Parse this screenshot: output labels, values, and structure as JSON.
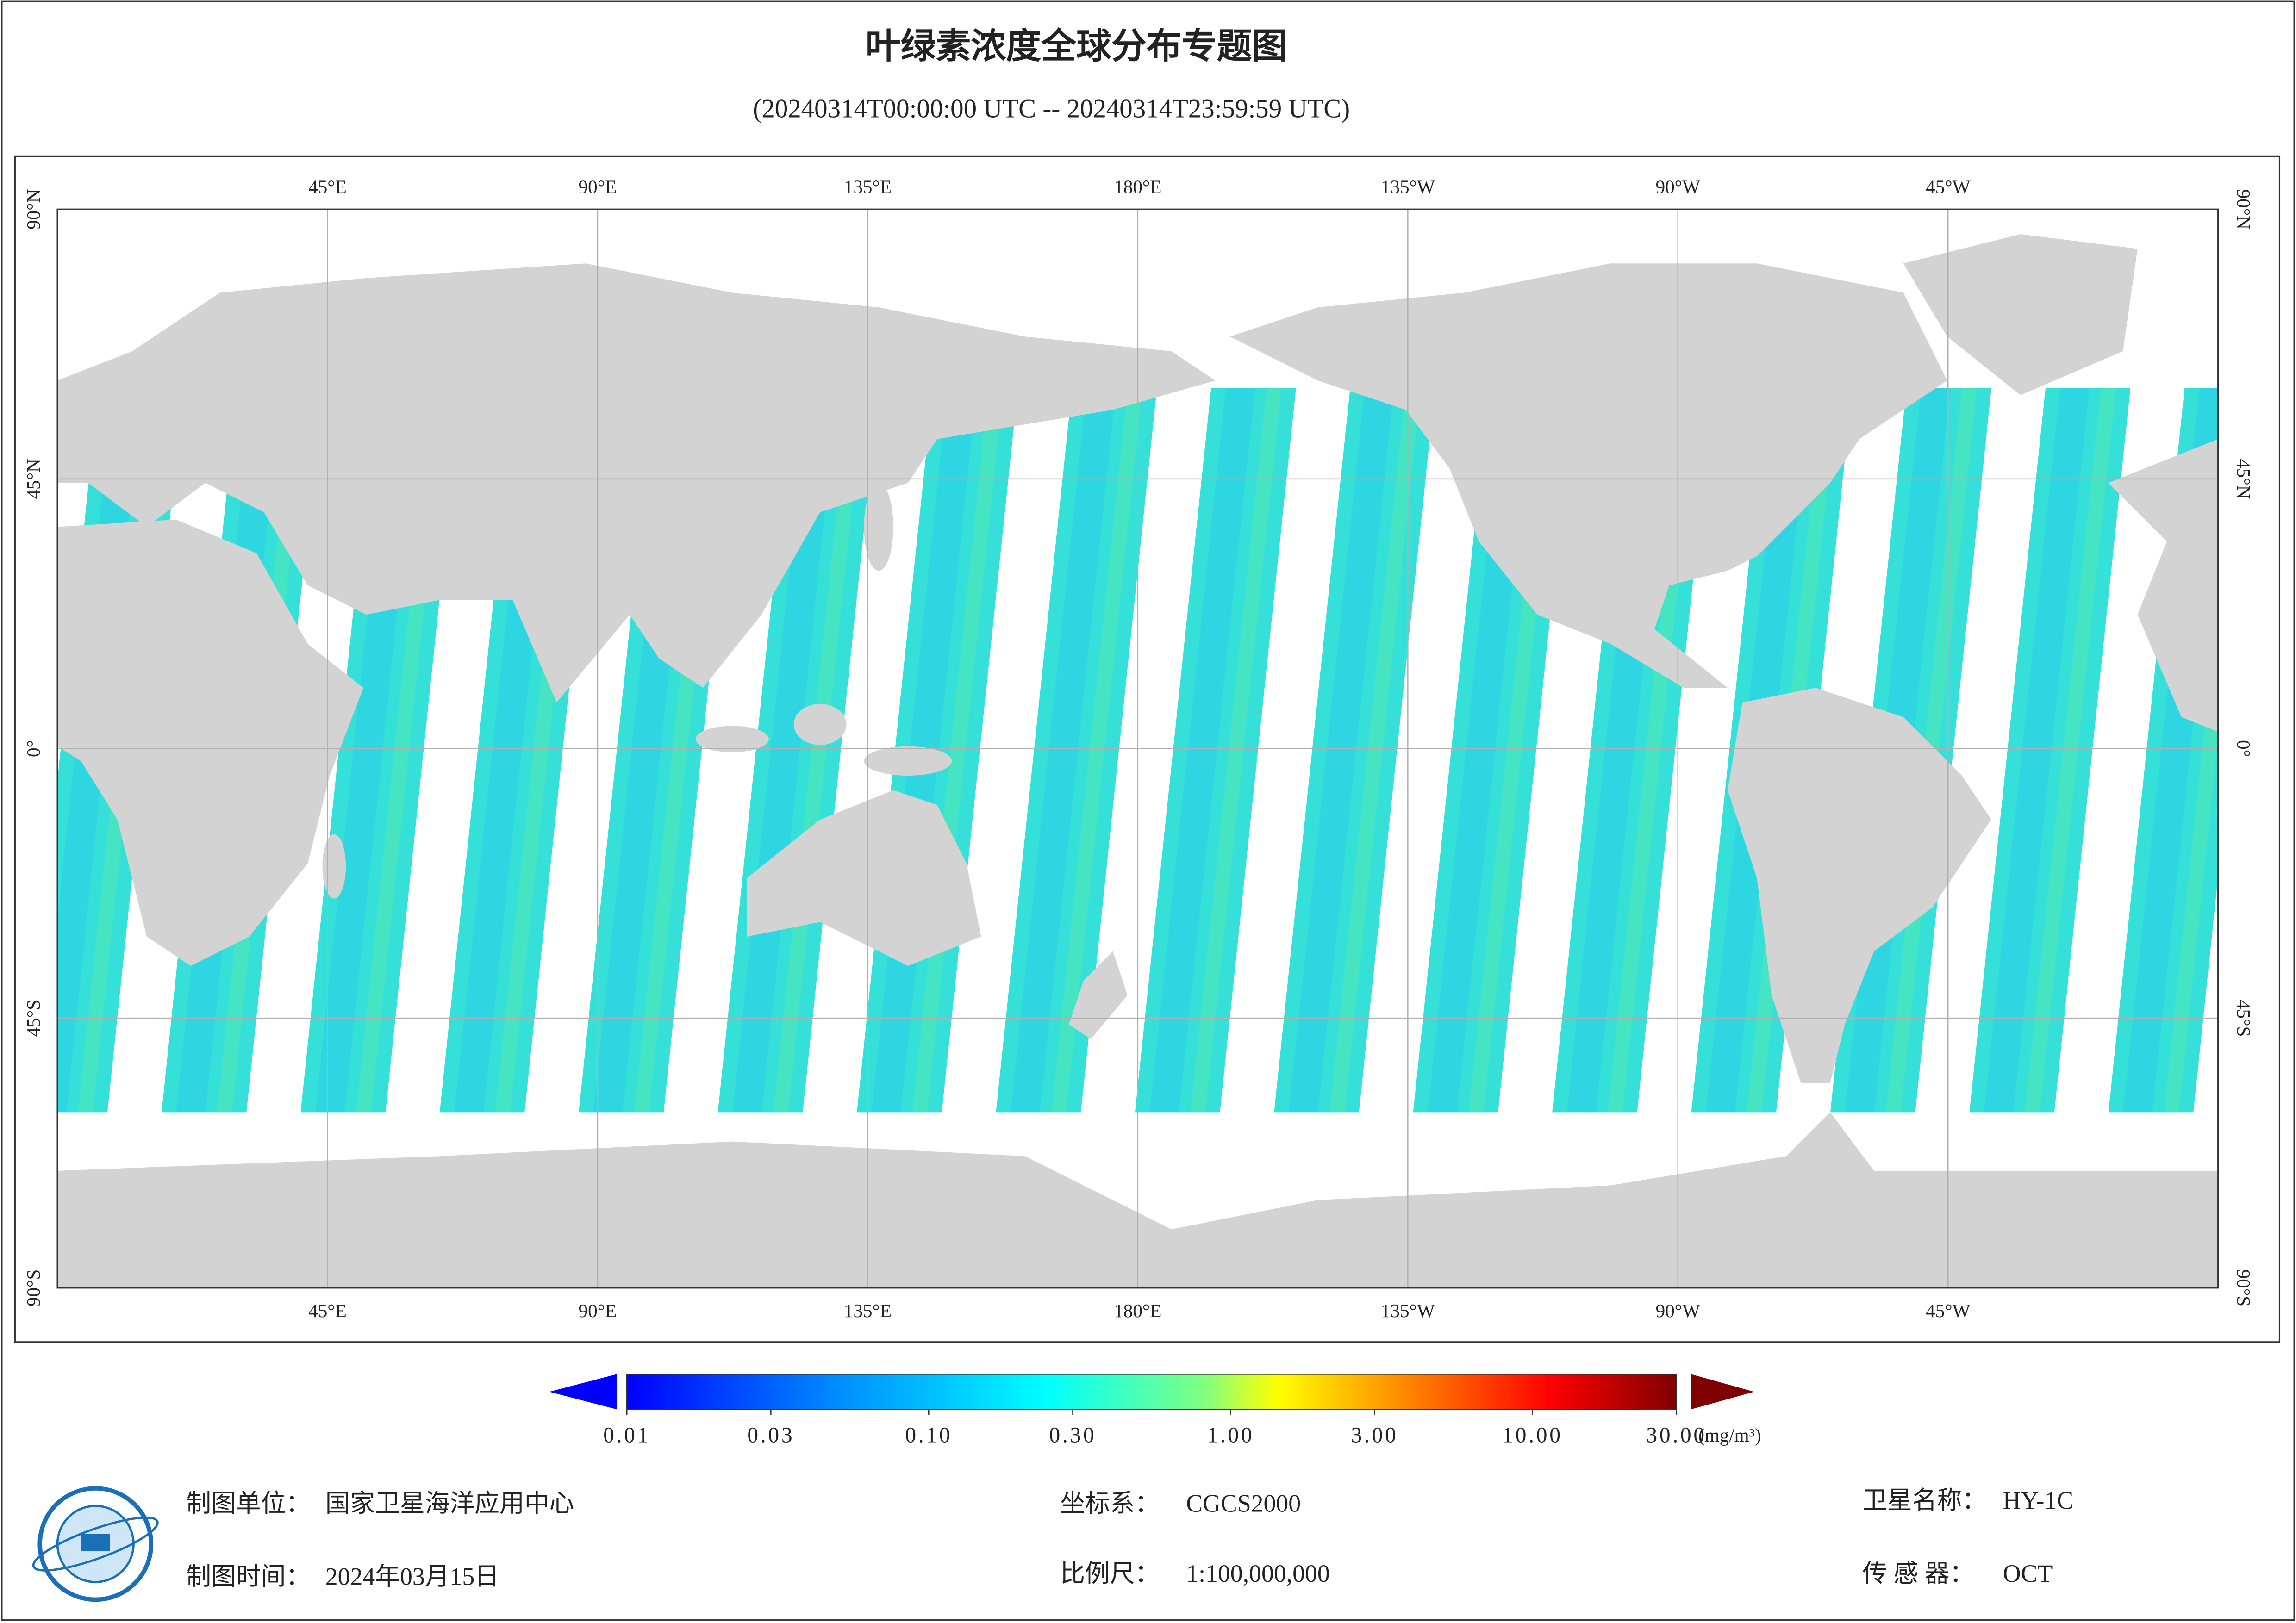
{
  "header": {
    "title": "叶绿素浓度全球分布专题图",
    "subtitle": "(20240314T00:00:00 UTC -- 20240314T23:59:59 UTC)"
  },
  "map": {
    "longitude_labels": [
      "45°E",
      "90°E",
      "135°E",
      "180°E",
      "135°W",
      "90°W",
      "45°W"
    ],
    "latitude_labels": [
      "90°N",
      "45°N",
      "0°",
      "45°S",
      "90°S"
    ]
  },
  "colorbar": {
    "ticks": [
      0.01,
      0.03,
      {
        "value": 0.1,
        "label": "0.10"
      },
      {
        "value": 0.3,
        "label": "0.30"
      },
      {
        "value": 1,
        "label": "1.00"
      },
      {
        "value": 3,
        "label": "3.00"
      },
      {
        "value": 10,
        "label": "10.00"
      },
      {
        "value": 30,
        "label": "30.00"
      }
    ],
    "unit": "(mg/m³)"
  },
  "footer": {
    "unit_label": "制图单位：",
    "unit": "国家卫星海洋应用中心",
    "date_label": "制图时间：",
    "date": "2024年03月15日",
    "crs_label": "坐标系：",
    "crs": "CGCS2000",
    "scale_label": "比例尺：",
    "scale": "1:100,000,000",
    "satellite_label": "卫星名称：",
    "satellite": "HY-1C",
    "sensor_label": "传 感 器：",
    "sensor": "OCT"
  }
}
